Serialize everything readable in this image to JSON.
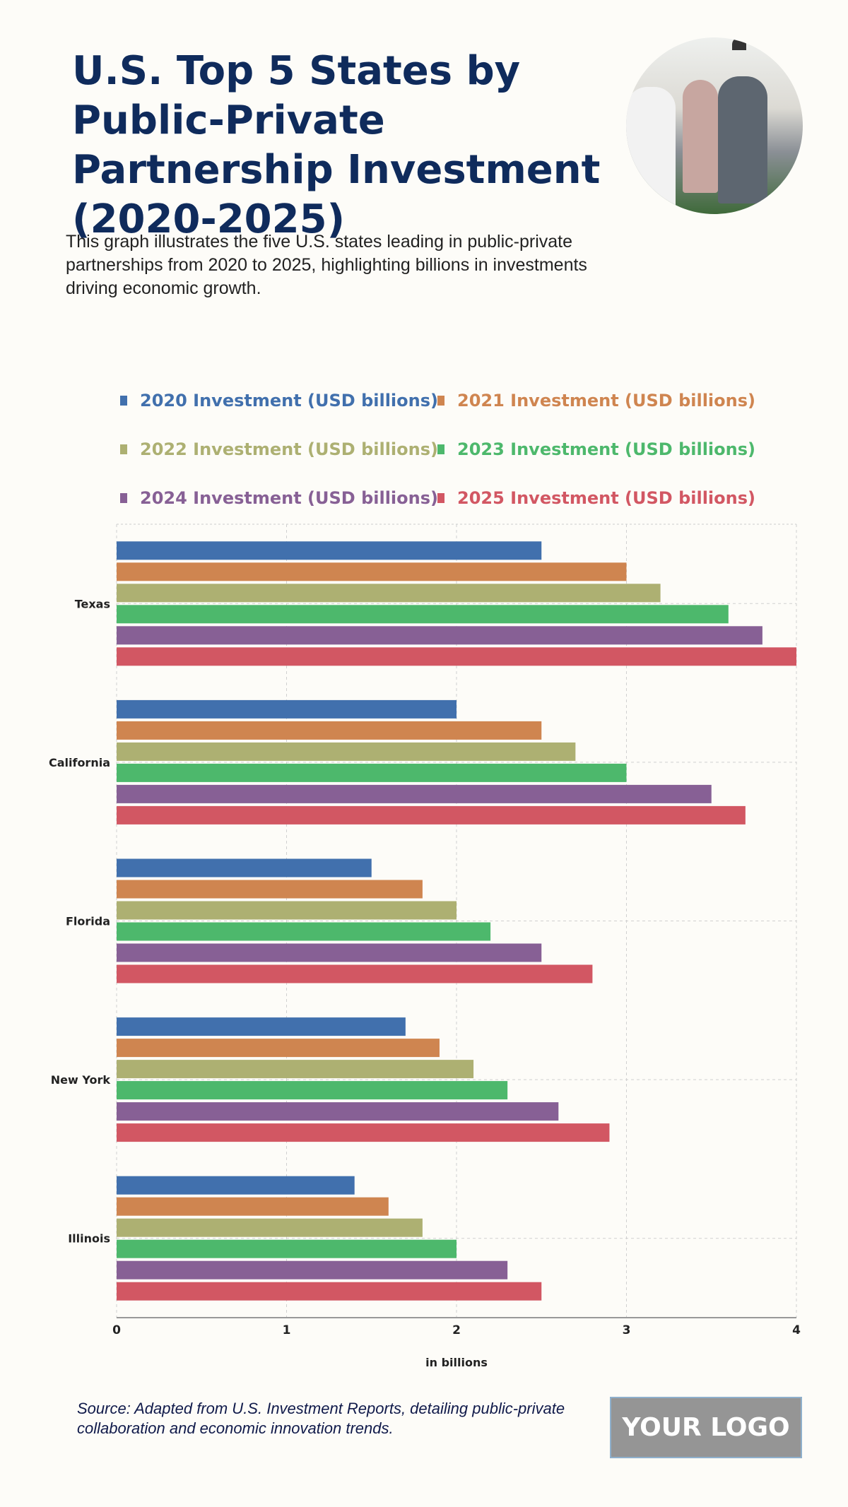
{
  "header": {
    "title": "U.S. Top 5 States by Public-Private Partnership Investment (2020-2025)",
    "description": "This graph illustrates the five U.S. states leading in public-private partnerships from 2020 to 2025, highlighting billions in investments driving economic growth."
  },
  "footer": {
    "source": "Source: Adapted from U.S. Investment Reports, detailing public-private collaboration and economic innovation trends.",
    "logo": "YOUR LOGO"
  },
  "chart_data": {
    "type": "bar",
    "orientation": "horizontal",
    "categories": [
      "Texas",
      "California",
      "Florida",
      "New York",
      "Illinois"
    ],
    "series": [
      {
        "name": "2020 Investment (USD billions)",
        "color": "#4170ad",
        "values": [
          2.5,
          2.0,
          1.5,
          1.7,
          1.4
        ]
      },
      {
        "name": "2021 Investment (USD billions)",
        "color": "#cf8550",
        "values": [
          3.0,
          2.5,
          1.8,
          1.9,
          1.6
        ]
      },
      {
        "name": "2022 Investment (USD billions)",
        "color": "#adb072",
        "values": [
          3.2,
          2.7,
          2.0,
          2.1,
          1.8
        ]
      },
      {
        "name": "2023 Investment (USD billions)",
        "color": "#4db86c",
        "values": [
          3.6,
          3.0,
          2.2,
          2.3,
          2.0
        ]
      },
      {
        "name": "2024 Investment (USD billions)",
        "color": "#876095",
        "values": [
          3.8,
          3.5,
          2.5,
          2.6,
          2.3
        ]
      },
      {
        "name": "2025 Investment (USD billions)",
        "color": "#d25763",
        "values": [
          4.0,
          3.7,
          2.8,
          2.9,
          2.5
        ]
      }
    ],
    "xlabel": "in billions",
    "xlim": [
      0,
      4
    ],
    "xticks": [
      "0",
      "1",
      "2",
      "3",
      "4"
    ],
    "grid": true,
    "legend": "top"
  }
}
